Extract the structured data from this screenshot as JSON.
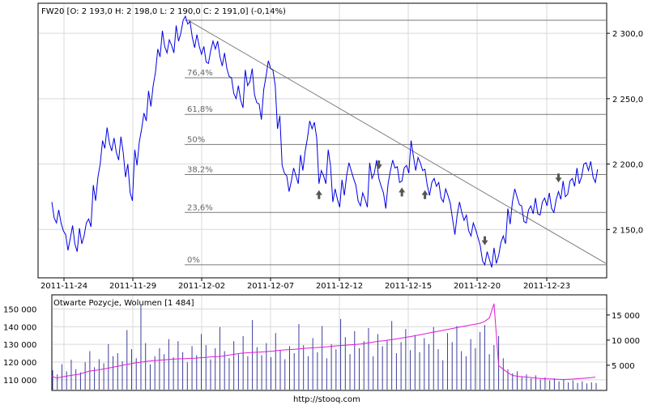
{
  "header": {
    "main_title": "FW20 [O: 2 193,0  H: 2 198,0  L: 2 190,0  C: 2 191,0] (-0,14%)",
    "lower_title": "Otwarte Pozycje, Wolumen [1 484]",
    "source": "http://stooq.com"
  },
  "chart_data": [
    {
      "type": "line",
      "title": "FW20 [O: 2 193,0  H: 2 198,0  L: 2 190,0  C: 2 191,0] (-0,14%)",
      "y_ticks": [
        "2 300,0",
        "2 250,0",
        "2 200,0",
        "2 150,0"
      ],
      "x_ticks": [
        "2011-11-24",
        "2011-11-29",
        "2011-12-02",
        "2011-12-07",
        "2011-12-12",
        "2011-12-15",
        "2011-12-20",
        "2011-12-23"
      ],
      "fibonacci_levels": [
        {
          "label": "0%",
          "value": 2123
        },
        {
          "label": "23,6%",
          "value": 2163
        },
        {
          "label": "38,2%",
          "value": 2192
        },
        {
          "label": "50%",
          "value": 2215
        },
        {
          "label": "61,8%",
          "value": 2238
        },
        {
          "label": "76,4%",
          "value": 2266
        }
      ],
      "ylim": [
        2113,
        2323
      ],
      "series": [
        {
          "values": [
            2165,
            2160,
            2152,
            2140,
            2148,
            2136,
            2145,
            2150,
            2155,
            2178,
            2195,
            2215,
            2222,
            2215,
            2206,
            2215,
            2195,
            2175,
            2205,
            2222,
            2236,
            2250,
            2265,
            2285,
            2296,
            2290,
            2288,
            2300,
            2305,
            2310,
            2303,
            2294,
            2287,
            2284,
            2282,
            2291,
            2288,
            2280,
            2270,
            2260,
            2255,
            2246,
            2266,
            2268,
            2250,
            2240,
            2262,
            2276,
            2266,
            2232,
            2196,
            2185,
            2192,
            2188,
            2201,
            2215,
            2230,
            2226,
            2190,
            2188,
            2205,
            2176,
            2170,
            2182,
            2196,
            2192,
            2178,
            2173,
            2170,
            2195,
            2198,
            2186,
            2172,
            2190,
            2200,
            2192,
            2192,
            2196,
            2212,
            2200,
            2198,
            2190,
            2181,
            2186,
            2180,
            2176,
            2173,
            2152,
            2166,
            2160,
            2155,
            2150,
            2147,
            2132,
            2128,
            2124,
            2130,
            2135,
            2142,
            2160,
            2176,
            2172,
            2162,
            2160,
            2165,
            2168,
            2166,
            2171,
            2172,
            2168,
            2176,
            2181,
            2182,
            2186,
            2191,
            2195,
            2198,
            2196,
            2191
          ]
        }
      ],
      "trendline": {
        "start_value": 2310,
        "end_value": 2124
      },
      "markers": [
        {
          "direction": "down",
          "index": 71
        },
        {
          "direction": "down",
          "index": 94
        },
        {
          "direction": "down",
          "index": 110
        },
        {
          "direction": "up",
          "index": 58
        },
        {
          "direction": "up",
          "index": 76
        },
        {
          "direction": "up",
          "index": 81
        }
      ]
    },
    {
      "type": "bar",
      "title": "Otwarte Pozycje, Wolumen [1 484]",
      "y_ticks_left": [
        "150 000",
        "140 000",
        "130 000",
        "120 000",
        "110 000"
      ],
      "y_ticks_right": [
        "15 000",
        "10 000",
        "5 000"
      ],
      "ylim_left": [
        104000,
        158000
      ],
      "ylim_right": [
        0,
        19000
      ],
      "open_interest": [
        112000,
        111000,
        111500,
        112000,
        112400,
        112800,
        113200,
        114000,
        114800,
        115200,
        115600,
        116000,
        116500,
        117000,
        117500,
        118000,
        118600,
        119000,
        119500,
        119900,
        120200,
        120500,
        120800,
        121000,
        121200,
        121400,
        121600,
        121800,
        121900,
        122000,
        122100,
        122200,
        122400,
        122600,
        122800,
        123000,
        123100,
        123300,
        123800,
        124200,
        124600,
        125000,
        125200,
        125400,
        125500,
        125600,
        125800,
        126000,
        126200,
        126500,
        126800,
        127000,
        127100,
        127300,
        127500,
        127800,
        128000,
        128100,
        128300,
        128500,
        128700,
        129000,
        129200,
        129400,
        129600,
        129800,
        130000,
        130200,
        130600,
        131000,
        131400,
        131800,
        132000,
        132400,
        132800,
        133200,
        133600,
        134000,
        134500,
        135000,
        135500,
        136000,
        136500,
        137000,
        137500,
        138000,
        138500,
        139000,
        139500,
        140000,
        140500,
        141000,
        141500,
        142000,
        143000,
        145000,
        153000,
        118000,
        116000,
        114000,
        112500,
        112000,
        111800,
        111500,
        111300,
        111000,
        110800,
        110600,
        110500,
        110400,
        110300,
        110200,
        110300,
        110400,
        110600,
        110800,
        111000,
        111200,
        111500
      ],
      "volume": [
        4000,
        3200,
        5200,
        3800,
        6100,
        4200,
        3600,
        5600,
        7800,
        4600,
        6200,
        5400,
        9200,
        6800,
        7400,
        5800,
        12000,
        8200,
        6400,
        17000,
        9400,
        5200,
        6800,
        8400,
        7200,
        10200,
        6600,
        9800,
        7600,
        5600,
        8800,
        7000,
        11200,
        9000,
        6200,
        8400,
        12600,
        7800,
        6400,
        9800,
        7200,
        10800,
        6800,
        14000,
        8600,
        7000,
        9400,
        6600,
        11400,
        8000,
        6200,
        8800,
        7400,
        13200,
        9000,
        6800,
        10400,
        7600,
        12800,
        6400,
        9200,
        8200,
        14200,
        10600,
        7200,
        11800,
        8400,
        9800,
        12400,
        6800,
        11200,
        8800,
        10000,
        13800,
        7400,
        9600,
        12200,
        8000,
        11000,
        7600,
        10400,
        9200,
        12600,
        8200,
        6000,
        11400,
        9600,
        12800,
        7800,
        6800,
        10200,
        8400,
        11600,
        13000,
        7200,
        9000,
        10800,
        6400,
        4200,
        3400,
        3800,
        2800,
        3200,
        2400,
        3000,
        2200,
        2600,
        2000,
        2400,
        1800,
        2200,
        1600,
        2000,
        1500,
        1800,
        1400,
        1600,
        1484
      ]
    }
  ]
}
